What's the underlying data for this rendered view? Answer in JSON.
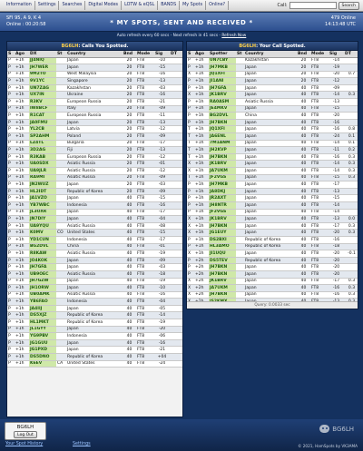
{
  "nav": {
    "tabs": [
      "Information",
      "Settings",
      "Searches",
      "Digital Modes",
      "LOTW & eQSL",
      "BANDS",
      "My Spots",
      "Online?"
    ],
    "call_label": "Call:",
    "call_value": "",
    "search_label": "Search"
  },
  "status": {
    "solar": "SFI 95, A 9, K 4",
    "online_time": "Online : 00:20:58",
    "title": "* MY SPOTS, SENT AND RECEIVED *",
    "online_count": "479 Online",
    "utc_time": "14:13:48 UTC"
  },
  "refresh": {
    "text": "Auto refresh every 60 secs - Next refresh in 41 secs - ",
    "link": "Refresh Now"
  },
  "left_panel": {
    "call": "BG6LH",
    "title_suffix": ": Calls You Spotted.",
    "headers": [
      "S",
      "Ago",
      "DX",
      "St",
      "Country",
      "Bnd",
      "Mode",
      "Sig",
      "DT"
    ],
    "rows": [
      [
        "P",
        "+1h",
        "JJ4NIQ",
        "",
        "Japan",
        "20",
        "FT8",
        "-10",
        ""
      ],
      [
        "P",
        "+1h",
        "JH7WER",
        "",
        "Japan",
        "20",
        "FT8",
        "-15",
        ""
      ],
      [
        "P",
        "+1h",
        "9M2TO",
        "",
        "West Malaysia",
        "20",
        "FT8",
        "-16",
        ""
      ],
      [
        "P",
        "+1h",
        "9V1YC",
        "",
        "Singapore",
        "20",
        "FT8",
        "-13",
        ""
      ],
      [
        "P",
        "+1h",
        "UN7ZAG",
        "",
        "Kazakhstan",
        "20",
        "FT8",
        "-03",
        ""
      ],
      [
        "P",
        "+1h",
        "UX7IN",
        "",
        "Ukraine",
        "20",
        "FT8",
        "-16",
        ""
      ],
      [
        "P",
        "+1h",
        "R3KV",
        "",
        "European Russia",
        "20",
        "FT8",
        "-21",
        ""
      ],
      [
        "P",
        "+1h",
        "IW8BCF",
        "",
        "Italy",
        "20",
        "FT8",
        "-09",
        ""
      ],
      [
        "P",
        "+1h",
        "R1CAT",
        "",
        "European Russia",
        "20",
        "FT8",
        "-11",
        ""
      ],
      [
        "P",
        "+1h",
        "JA0FMU",
        "",
        "Japan",
        "20",
        "FT8",
        "-13",
        ""
      ],
      [
        "P",
        "+1h",
        "YL2CB",
        "",
        "Latvia",
        "20",
        "FT8",
        "-12",
        ""
      ],
      [
        "P",
        "+1h",
        "SP2AHM",
        "",
        "Poland",
        "20",
        "FT8",
        "-09",
        ""
      ],
      [
        "P",
        "+1h",
        "LZ4TL",
        "",
        "Bulgaria",
        "20",
        "FT8",
        "-17",
        ""
      ],
      [
        "P",
        "+1h",
        "3D2AG",
        "",
        "Fiji",
        "20",
        "FT8",
        "-13",
        ""
      ],
      [
        "P",
        "+1h",
        "R3KAB",
        "",
        "European Russia",
        "20",
        "FT8",
        "-12",
        ""
      ],
      [
        "P",
        "+1h",
        "UA0SDX",
        "",
        "Asiatic Russia",
        "20",
        "FT8",
        "-01",
        ""
      ],
      [
        "P",
        "+1h",
        "UA9JLR",
        "",
        "Asiatic Russia",
        "20",
        "FT8",
        "-12",
        ""
      ],
      [
        "P",
        "+1h",
        "RA9MI",
        "",
        "Asiatic Russia",
        "20",
        "FT8",
        "-09",
        ""
      ],
      [
        "P",
        "+1h",
        "JN2WUZ",
        "",
        "Japan",
        "20",
        "FT8",
        "-03",
        ""
      ],
      [
        "P",
        "+1h",
        "HL2IDT",
        "",
        "Republic of Korea",
        "20",
        "FT8",
        "-09",
        ""
      ],
      [
        "P",
        "+1h",
        "JA1VZO",
        "",
        "Japan",
        "40",
        "FT8",
        "-15",
        ""
      ],
      [
        "P",
        "+1h",
        "YB7WBC",
        "",
        "Indonesia",
        "40",
        "FT8",
        "-16",
        ""
      ],
      [
        "P",
        "+1h",
        "JL3OXR",
        "",
        "Japan",
        "40",
        "FT8",
        "-17",
        ""
      ],
      [
        "P",
        "+1h",
        "JN7DIY",
        "",
        "Japan",
        "40",
        "FT8",
        "-04",
        ""
      ],
      [
        "P",
        "+1h",
        "UA9YQU",
        "",
        "Asiatic Russia",
        "40",
        "FT8",
        "-08",
        ""
      ],
      [
        "P",
        "+1h",
        "K0MV",
        "CO",
        "United States",
        "40",
        "FT8",
        "-15",
        ""
      ],
      [
        "P",
        "+1h",
        "YD1CUN",
        "",
        "Indonesia",
        "40",
        "FT8",
        "-17",
        ""
      ],
      [
        "P",
        "+1h",
        "BG2DVL",
        "",
        "China",
        "40",
        "FT8",
        "-01",
        ""
      ],
      [
        "P",
        "+1h",
        "R8KAW",
        "",
        "Asiatic Russia",
        "40",
        "FT8",
        "-19",
        ""
      ],
      [
        "P",
        "+1h",
        "JO4KOK",
        "",
        "Japan",
        "40",
        "FT8",
        "-09",
        ""
      ],
      [
        "P",
        "+1h",
        "JH7GFA",
        "",
        "Japan",
        "40",
        "FT8",
        "-03",
        ""
      ],
      [
        "P",
        "+1h",
        "UB9OEC",
        "",
        "Asiatic Russia",
        "40",
        "FT8",
        "-18",
        ""
      ],
      [
        "P",
        "+1h",
        "JH7GZW",
        "",
        "Japan",
        "40",
        "FT8",
        "-19",
        ""
      ],
      [
        "P",
        "+1h",
        "JH1ORW",
        "",
        "Japan",
        "40",
        "FT8",
        "-10",
        ""
      ],
      [
        "P",
        "+1h",
        "UB0AMK",
        "",
        "Asiatic Russia",
        "40",
        "FT8",
        "-16",
        ""
      ],
      [
        "P",
        "+1h",
        "YB6FAO",
        "",
        "Indonesia",
        "40",
        "FT8",
        "-04",
        ""
      ],
      [
        "P",
        "+1h",
        "JA4IIJ",
        "",
        "Japan",
        "40",
        "FT8",
        "-05",
        ""
      ],
      [
        "P",
        "+1h",
        "DS5XJZ",
        "",
        "Republic of Korea",
        "40",
        "FT8",
        "-14",
        ""
      ],
      [
        "P",
        "+1h",
        "HL1MKT",
        "",
        "Republic of Korea",
        "40",
        "FT8",
        "-19",
        ""
      ],
      [
        "P",
        "+1h",
        "JL1GYY",
        "",
        "Japan",
        "40",
        "FT8",
        "-20",
        ""
      ],
      [
        "P",
        "+1h",
        "YG9PBV",
        "",
        "Indonesia",
        "40",
        "FT8",
        "-06",
        ""
      ],
      [
        "P",
        "+1h",
        "JG1GUU",
        "",
        "Japan",
        "40",
        "FT8",
        "-16",
        ""
      ],
      [
        "P",
        "+1h",
        "JG1PXD",
        "",
        "Japan",
        "40",
        "FT8",
        "-21",
        ""
      ],
      [
        "P",
        "+1h",
        "DS5DNO",
        "",
        "Republic of Korea",
        "40",
        "FT8",
        "+04",
        ""
      ],
      [
        "P",
        "+1h",
        "K6EV",
        "CA",
        "United States",
        "40",
        "FT8",
        "-24",
        ""
      ]
    ]
  },
  "right_panel": {
    "call": "BG6LH",
    "title_suffix": ": Your Call Spotted.",
    "headers": [
      "S",
      "Ago",
      "Spotter",
      "St",
      "Country",
      "Bnd",
      "Mode",
      "Sig",
      "DT"
    ],
    "rows": [
      [
        "P",
        "+1h",
        "UN7CBY",
        "",
        "Kazakhstan",
        "20",
        "FT8",
        "-14",
        ""
      ],
      [
        "P",
        "+1h",
        "JH7MKB",
        "",
        "Japan",
        "20",
        "FT8",
        "-19",
        ""
      ],
      [
        "X",
        "+1h",
        "JQ1XFI",
        "",
        "Japan",
        "20",
        "FT8",
        "-20",
        "0.7"
      ],
      [
        "P",
        "+1h",
        "JI1ANI",
        "",
        "Japan",
        "20",
        "FT8",
        "-12",
        ""
      ],
      [
        "P",
        "+1h",
        "JH7GFA",
        "",
        "Japan",
        "40",
        "FT8",
        "-09",
        ""
      ],
      [
        "X",
        "+1h",
        "JK1BRV",
        "",
        "Japan",
        "40",
        "FT8",
        "-14",
        "0.3"
      ],
      [
        "P",
        "+1h",
        "RA0ASM",
        "",
        "Asiatic Russia",
        "40",
        "FT8",
        "-13",
        ""
      ],
      [
        "P",
        "+1h",
        "JE4MKV",
        "",
        "Japan",
        "40",
        "FT8",
        "-15",
        ""
      ],
      [
        "P",
        "+1h",
        "BG2DVL",
        "",
        "China",
        "40",
        "FT8",
        "-20",
        ""
      ],
      [
        "P",
        "+1h",
        "JH7BKN",
        "",
        "Japan",
        "40",
        "FT8",
        "-16",
        ""
      ],
      [
        "T",
        "+1h",
        "JQ1XFI",
        "",
        "Japan",
        "40",
        "FT8",
        "-16",
        "0.8"
      ],
      [
        "T",
        "+1h",
        "JA6ENL",
        "",
        "Japan",
        "40",
        "FT8",
        "-24",
        "0.1"
      ],
      [
        "T",
        "+1h",
        "7M1ANM",
        "",
        "Japan",
        "40",
        "FT8",
        "-14",
        "0.1"
      ],
      [
        "T",
        "+1h",
        "JH2KVP",
        "",
        "Japan",
        "40",
        "FT8",
        "-11",
        "0.2"
      ],
      [
        "T",
        "+1h",
        "JH7BKN",
        "",
        "Japan",
        "40",
        "FT8",
        "-16",
        "0.3"
      ],
      [
        "X",
        "+1h",
        "JK1BRV",
        "",
        "Japan",
        "40",
        "FT8",
        "-14",
        "0.3"
      ],
      [
        "X",
        "+1h",
        "JA7UKM",
        "",
        "Japan",
        "40",
        "FT8",
        "-14",
        "0.3"
      ],
      [
        "T",
        "+1h",
        "JF2VGS",
        "",
        "Japan",
        "40",
        "FT8",
        "-15",
        "0.3"
      ],
      [
        "P",
        "+1h",
        "JH7MKB",
        "",
        "Japan",
        "40",
        "FT8",
        "-17",
        ""
      ],
      [
        "P",
        "+1h",
        "JA8DKJ",
        "",
        "Japan",
        "40",
        "FT8",
        "-13",
        ""
      ],
      [
        "P",
        "+1h",
        "JR2AXT",
        "",
        "Japan",
        "40",
        "FT8",
        "-15",
        ""
      ],
      [
        "P",
        "+1h",
        "JH8NTR",
        "",
        "Japan",
        "40",
        "FT8",
        "-14",
        ""
      ],
      [
        "P",
        "+1h",
        "JF2VGS",
        "",
        "Japan",
        "40",
        "FT8",
        "-14",
        ""
      ],
      [
        "X",
        "+1h",
        "JK1BRV",
        "",
        "Japan",
        "40",
        "FT8",
        "-13",
        "0.0"
      ],
      [
        "X",
        "+1h",
        "JH7BKN",
        "",
        "Japan",
        "40",
        "FT8",
        "-17",
        "0.3"
      ],
      [
        "X",
        "+1h",
        "JG1EUY",
        "",
        "Japan",
        "40",
        "FT8",
        "-20",
        "0.3"
      ],
      [
        "P",
        "+1h",
        "DS2BXI",
        "",
        "Republic of Korea",
        "40",
        "FT8",
        "-16",
        ""
      ],
      [
        "P",
        "+1h",
        "HL3AMO",
        "",
        "Republic of Korea",
        "40",
        "FT8",
        "-18",
        ""
      ],
      [
        "X",
        "+1h",
        "JI1UQU",
        "",
        "Japan",
        "40",
        "FT8",
        "-20",
        "-0.1"
      ],
      [
        "P",
        "+2h",
        "DS5TEV",
        "",
        "Republic of Korea",
        "40",
        "FT8",
        "-20",
        ""
      ],
      [
        "P",
        "+2h",
        "JH7BKN",
        "",
        "Japan",
        "40",
        "FT8",
        "-20",
        ""
      ],
      [
        "P",
        "+2h",
        "JH7BKN",
        "",
        "Japan",
        "40",
        "FT8",
        "-20",
        ""
      ],
      [
        "X",
        "+2h",
        "JK1BRV",
        "",
        "Japan",
        "40",
        "FT8",
        "-17",
        "0.3"
      ],
      [
        "X",
        "+2h",
        "JA7UKM",
        "",
        "Japan",
        "40",
        "FT8",
        "-16",
        "0.3"
      ],
      [
        "X",
        "+2h",
        "JH7BKN",
        "",
        "Japan",
        "40",
        "FT8",
        "-16",
        "0.3"
      ],
      [
        "X",
        "+2h",
        "JS2KMX",
        "",
        "Japan",
        "40",
        "FT8",
        "-13",
        "0.3"
      ],
      [
        "X",
        "+2h",
        "JL1GYY",
        "",
        "Japan",
        "40",
        "FT8",
        "-13",
        "0.3"
      ]
    ],
    "query": "Query: 0.0033 sec"
  },
  "footer": {
    "user_call": "BG6LH",
    "logout_label": "Log Out",
    "history_link": "Your Spot History",
    "settings_link": "Settings",
    "watermark": "BG6LH",
    "copyright": "© 2021, HamSpots by VK3AMA"
  },
  "colors": {
    "page_background": "#14315f",
    "callsign_highlight": "#cfe8a8",
    "title_callsign": "#ffd24a"
  }
}
